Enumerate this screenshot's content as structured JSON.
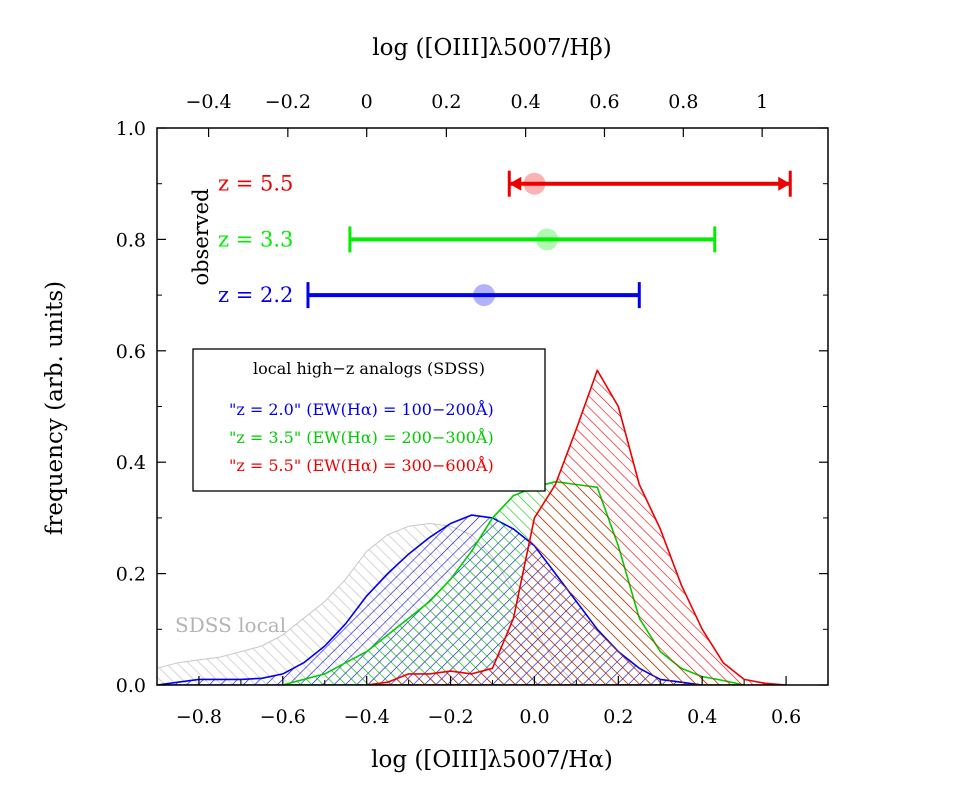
{
  "chart_data": {
    "type": "area",
    "xlabel": "log ([OIII]λ5007/Hα)",
    "xlabel_top": "log ([OIII]λ5007/Hβ)",
    "ylabel": "frequency (arb. units)",
    "xlim": [
      -0.9,
      0.7
    ],
    "ylim": [
      0.0,
      1.0
    ],
    "x_ticks": [
      "−0.8",
      "−0.6",
      "−0.4",
      "−0.2",
      "0.0",
      "0.2",
      "0.4",
      "0.6"
    ],
    "x_tick_values": [
      -0.8,
      -0.6,
      -0.4,
      -0.2,
      0.0,
      0.2,
      0.4,
      0.6
    ],
    "x_top_ticks": [
      "−0.4",
      "−0.2",
      "0",
      "0.2",
      "0.4",
      "0.6",
      "0.8",
      "1"
    ],
    "x_top_tick_positions": [
      -0.777,
      -0.588,
      -0.4,
      -0.21,
      -0.021,
      0.167,
      0.355,
      0.543
    ],
    "y_ticks": [
      "0.0",
      "0.2",
      "0.4",
      "0.6",
      "0.8",
      "1.0"
    ],
    "y_tick_values": [
      0.0,
      0.2,
      0.4,
      0.6,
      0.8,
      1.0
    ],
    "grid": false,
    "series": [
      {
        "name": "SDSS local",
        "color": "#c8c8c8",
        "hatch": "forward",
        "x": [
          -0.9,
          -0.85,
          -0.8,
          -0.75,
          -0.7,
          -0.65,
          -0.6,
          -0.55,
          -0.5,
          -0.45,
          -0.4,
          -0.35,
          -0.3,
          -0.25,
          -0.2,
          -0.15,
          -0.1,
          -0.05,
          0.0,
          0.05,
          0.1
        ],
        "y": [
          0.03,
          0.04,
          0.045,
          0.05,
          0.06,
          0.07,
          0.09,
          0.12,
          0.15,
          0.19,
          0.24,
          0.27,
          0.285,
          0.29,
          0.285,
          0.27,
          0.23,
          0.17,
          0.1,
          0.04,
          0.0
        ]
      },
      {
        "name": "\"z = 2.0\" (EW(Hα) = 100−200Å)",
        "color": "#0000ee",
        "hatch": "back",
        "x": [
          -0.9,
          -0.85,
          -0.8,
          -0.75,
          -0.7,
          -0.65,
          -0.6,
          -0.55,
          -0.5,
          -0.45,
          -0.4,
          -0.35,
          -0.3,
          -0.25,
          -0.2,
          -0.15,
          -0.1,
          -0.05,
          0.0,
          0.05,
          0.1,
          0.15,
          0.2,
          0.25,
          0.3,
          0.35,
          0.4
        ],
        "y": [
          0.0,
          0.005,
          0.01,
          0.01,
          0.01,
          0.012,
          0.02,
          0.04,
          0.07,
          0.11,
          0.16,
          0.2,
          0.235,
          0.265,
          0.29,
          0.305,
          0.3,
          0.28,
          0.25,
          0.2,
          0.15,
          0.1,
          0.06,
          0.03,
          0.01,
          0.005,
          0.0
        ]
      },
      {
        "name": "\"z = 3.5\" (EW(Hα) = 200−300Å)",
        "color": "#00cc00",
        "hatch": "forward",
        "x": [
          -0.6,
          -0.55,
          -0.5,
          -0.45,
          -0.4,
          -0.35,
          -0.3,
          -0.25,
          -0.2,
          -0.15,
          -0.1,
          -0.05,
          0.0,
          0.05,
          0.1,
          0.15,
          0.2,
          0.25,
          0.3,
          0.35,
          0.4,
          0.45,
          0.5
        ],
        "y": [
          0.0,
          0.01,
          0.02,
          0.04,
          0.06,
          0.09,
          0.12,
          0.15,
          0.19,
          0.24,
          0.3,
          0.34,
          0.355,
          0.365,
          0.36,
          0.355,
          0.25,
          0.12,
          0.06,
          0.03,
          0.015,
          0.008,
          0.0
        ]
      },
      {
        "name": "\"z = 5.5\" (EW(Hα) = 300−600Å)",
        "color": "#ee0000",
        "hatch": "forward",
        "x": [
          -0.4,
          -0.35,
          -0.3,
          -0.25,
          -0.2,
          -0.15,
          -0.1,
          -0.05,
          0.0,
          0.05,
          0.1,
          0.15,
          0.2,
          0.25,
          0.3,
          0.35,
          0.4,
          0.45,
          0.5,
          0.55,
          0.6
        ],
        "y": [
          0.0,
          0.005,
          0.02,
          0.02,
          0.025,
          0.02,
          0.03,
          0.12,
          0.3,
          0.36,
          0.46,
          0.565,
          0.5,
          0.36,
          0.28,
          0.18,
          0.1,
          0.04,
          0.01,
          0.003,
          0.0
        ]
      }
    ],
    "observed": [
      {
        "label": "z = 5.5",
        "color": "#ee0000",
        "y": 0.9,
        "xmin": -0.06,
        "xmax": 0.61,
        "point": 0.0
      },
      {
        "label": "z = 3.3",
        "color": "#00ee00",
        "y": 0.8,
        "xmin": -0.44,
        "xmax": 0.43,
        "point": 0.03
      },
      {
        "label": "z = 2.2",
        "color": "#0000ee",
        "y": 0.7,
        "xmin": -0.54,
        "xmax": 0.25,
        "point": -0.12
      }
    ],
    "observed_label": "observed",
    "sdss_label": "SDSS local",
    "legend_title": "local high−z analogs (SDSS)",
    "legend_placement": "center-left",
    "legend": [
      {
        "text": "\"z = 2.0\" (EW(Hα) = 100−200Å)",
        "color": "#0000ee"
      },
      {
        "text": "\"z = 3.5\" (EW(Hα) = 200−300Å)",
        "color": "#00cc00"
      },
      {
        "text": "\"z = 5.5\" (EW(Hα) = 300−600Å)",
        "color": "#ee0000"
      }
    ]
  }
}
